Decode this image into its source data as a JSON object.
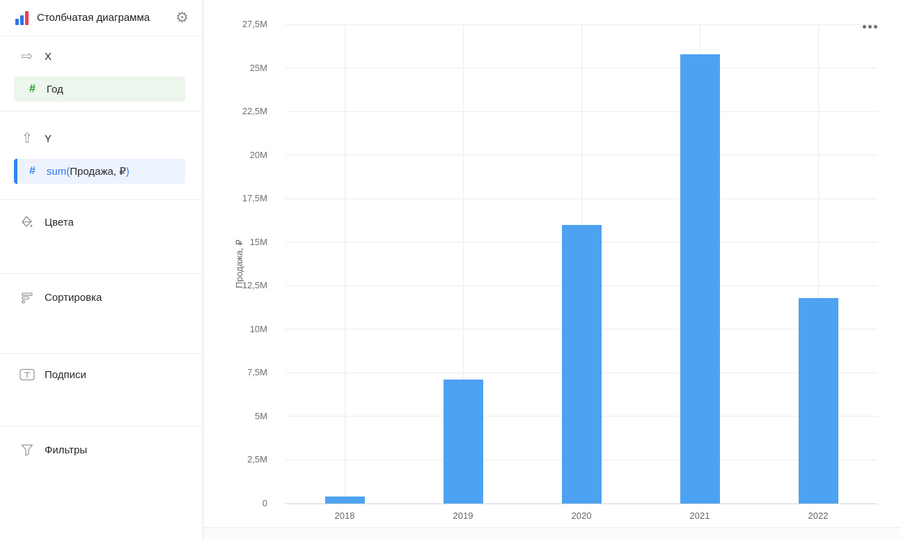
{
  "header": {
    "title": "Столбчатая диаграмма"
  },
  "sidebar": {
    "sections": [
      {
        "id": "x",
        "icon": "arrow-right-icon",
        "label": "X",
        "fields": [
          {
            "icon": "number-field-icon",
            "name": "Год"
          }
        ]
      },
      {
        "id": "y",
        "icon": "arrow-up-icon",
        "label": "Y",
        "fields": [
          {
            "icon": "number-field-icon",
            "fn": "sum(",
            "name": "Продажа, ₽",
            "close": ")"
          }
        ]
      },
      {
        "id": "colors",
        "icon": "paint-bucket-icon",
        "label": "Цвета"
      },
      {
        "id": "sorting",
        "icon": "sort-icon",
        "label": "Сортировка"
      },
      {
        "id": "labels",
        "icon": "text-label-icon",
        "label": "Подписи"
      },
      {
        "id": "filters",
        "icon": "funnel-icon",
        "label": "Фильтры"
      }
    ]
  },
  "chart_data": {
    "type": "bar",
    "title": "",
    "categories": [
      "2018",
      "2019",
      "2020",
      "2021",
      "2022"
    ],
    "values": [
      0.4,
      7.1,
      16,
      25.8,
      11.8
    ],
    "value_unit": "millions",
    "series_name": "sum(Продажа, ₽)",
    "xlabel": "",
    "ylabel": "Продажа, ₽",
    "ylim": [
      0,
      27.5
    ],
    "y_ticks": [
      "0",
      "2,5M",
      "5M",
      "7,5M",
      "10M",
      "12,5M",
      "15M",
      "17,5M",
      "20M",
      "22,5M",
      "25M",
      "27,5M"
    ],
    "grid": true,
    "legend": "none",
    "bar_color": "#4DA2F2"
  },
  "colors": {
    "bar": "#4DA2F2",
    "measure_accent": "#2F85F1",
    "dimension_accent": "#17A21B",
    "brand_blue": "#3072DD",
    "brand_red": "#EF4056"
  }
}
